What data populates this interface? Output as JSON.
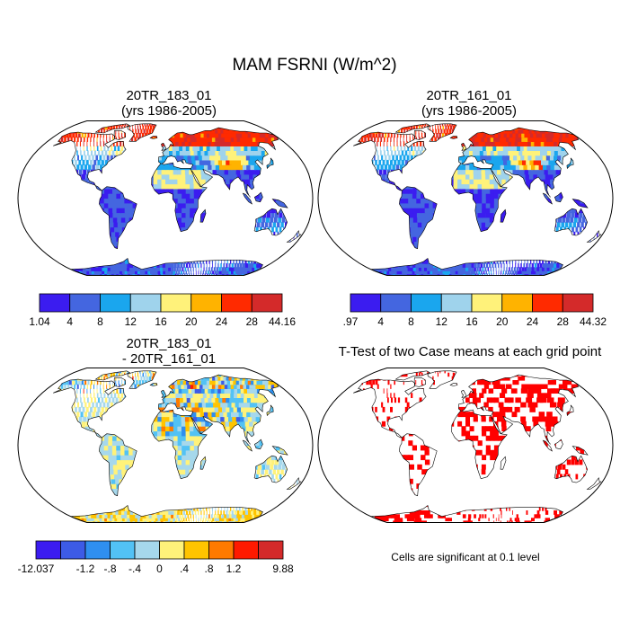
{
  "figure_title": "MAM FSRNI (W/m^2)",
  "panels": {
    "top_left": {
      "title_line1": "20TR_183_01",
      "title_line2": "(yrs 1986-2005)"
    },
    "top_right": {
      "title_line1": "20TR_161_01",
      "title_line2": "(yrs 1986-2005)"
    },
    "bottom_left": {
      "title_line1": "20TR_183_01",
      "title_line2": "- 20TR_161_01"
    },
    "bottom_right": {
      "title_line1": "T-Test of two Case means at each grid point",
      "title_line2": ""
    }
  },
  "colorbars": {
    "top_left": {
      "colors": [
        "#3b1cf0",
        "#4466e0",
        "#1aa6ee",
        "#9fd3ec",
        "#fff27a",
        "#ffb300",
        "#ff2a00",
        "#d42a2a"
      ],
      "labels": [
        "1.04",
        "4",
        "8",
        "12",
        "16",
        "20",
        "24",
        "28",
        "44.16"
      ]
    },
    "top_right": {
      "colors": [
        "#3b1cf0",
        "#4466e0",
        "#1aa6ee",
        "#9fd3ec",
        "#fff27a",
        "#ffb300",
        "#ff2a00",
        "#d42a2a"
      ],
      "labels": [
        ".97",
        "4",
        "8",
        "12",
        "16",
        "20",
        "24",
        "28",
        "44.32"
      ]
    },
    "bottom_left": {
      "colors": [
        "#3b1cf0",
        "#3d5be6",
        "#2f8ff0",
        "#52c2f5",
        "#a6d8ec",
        "#fff27a",
        "#ffc400",
        "#ff7a00",
        "#ff1a00",
        "#d42a2a"
      ],
      "labels": [
        "-12.037",
        "",
        "-1.2",
        "-.8",
        "-.4",
        "0",
        ".4",
        ".8",
        "1.2",
        "",
        "9.88"
      ]
    }
  },
  "significance_note": "Cells are significant at 0.1 level",
  "significance_color": "#ff0000"
}
